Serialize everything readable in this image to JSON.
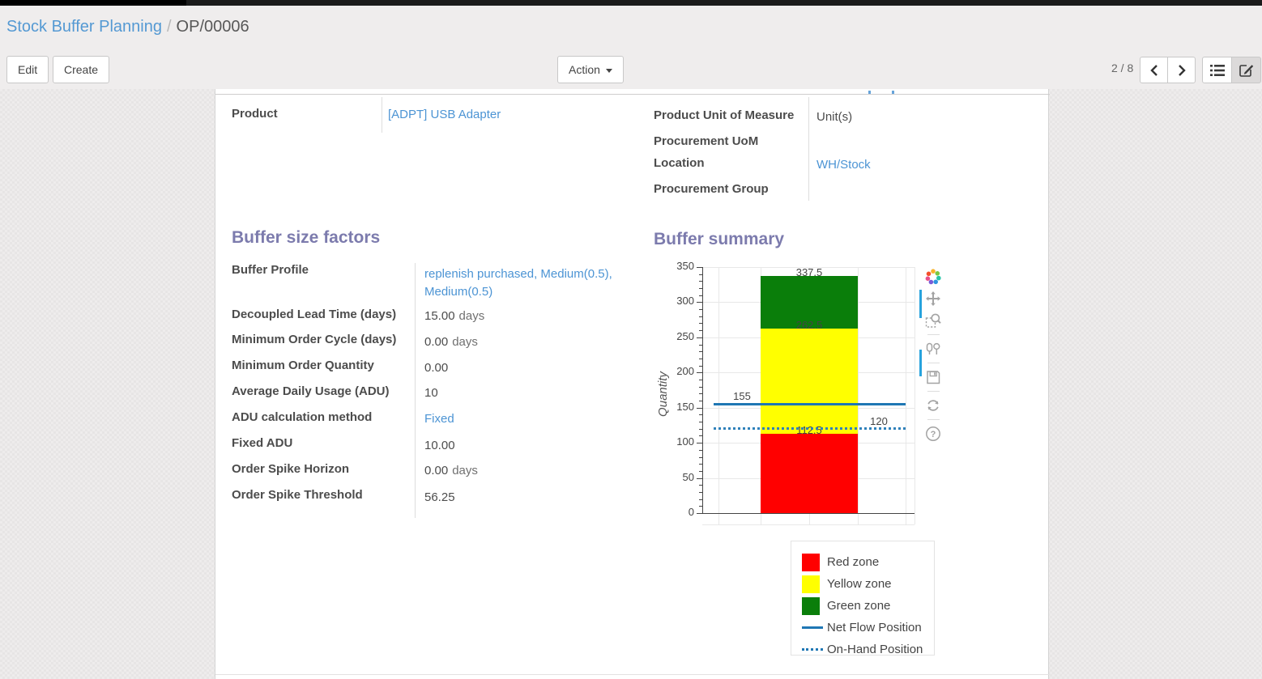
{
  "breadcrumb": {
    "parent": "Stock Buffer Planning",
    "separator": "/",
    "current": "OP/00006"
  },
  "control_panel": {
    "edit_label": "Edit",
    "create_label": "Create",
    "action_label": "Action",
    "pager": "2 / 8",
    "view_switcher_icons": [
      "list-view-icon",
      "form-view-icon"
    ],
    "active_view": "form"
  },
  "form": {
    "product": {
      "label": "Product",
      "value": "[ADPT] USB Adapter"
    },
    "right_fields": [
      {
        "label": "Product Unit of Measure",
        "value": "Unit(s)"
      },
      {
        "label": "Procurement UoM",
        "value": ""
      },
      {
        "label": "Location",
        "value": "WH/Stock"
      },
      {
        "label": "Procurement Group",
        "value": ""
      }
    ],
    "factors": {
      "title": "Buffer size factors",
      "fields": [
        {
          "label": "Buffer Profile",
          "value": "replenish purchased, Medium(0.5), Medium(0.5)"
        },
        {
          "label": "Decoupled Lead Time (days)",
          "value": "15.00",
          "suffix": "days"
        },
        {
          "label": "Minimum Order Cycle (days)",
          "value": "0.00",
          "suffix": "days"
        },
        {
          "label": "Minimum Order Quantity",
          "value": "0.00"
        },
        {
          "label": "Average Daily Usage (ADU)",
          "value": "10"
        },
        {
          "label": "ADU calculation method",
          "value": "Fixed"
        },
        {
          "label": "Fixed ADU",
          "value": "10.00"
        },
        {
          "label": "Order Spike Horizon",
          "value": "0.00",
          "suffix": "days"
        },
        {
          "label": "Order Spike Threshold",
          "value": "56.25"
        }
      ]
    },
    "summary_title": "Buffer summary"
  },
  "chart_data": {
    "type": "bar",
    "stacked": true,
    "title": "",
    "xlabel": "",
    "ylabel": "Quantity",
    "ylim": [
      0,
      350
    ],
    "ytick_step": 50,
    "minor_tick_step": 10,
    "grid": true,
    "zones": [
      {
        "name": "Red zone",
        "from": 0,
        "to": 112.5,
        "color": "#ff0000"
      },
      {
        "name": "Yellow zone",
        "from": 112.5,
        "to": 262.5,
        "color": "#ffff00"
      },
      {
        "name": "Green zone",
        "from": 262.5,
        "to": 337.5,
        "color": "#0a7e0a"
      }
    ],
    "segment_value_labels": [
      "112.5",
      "262.5",
      "337.5"
    ],
    "lines": [
      {
        "name": "Net Flow Position",
        "value": 155,
        "style": "solid",
        "color": "#1f77b4",
        "label": "155",
        "label_side": "left"
      },
      {
        "name": "On-Hand Position",
        "value": 120,
        "style": "dotted",
        "color": "#2f81ba",
        "label": "120",
        "label_side": "right"
      }
    ],
    "legend_position": "bottom-right",
    "legend": [
      {
        "label": "Red zone",
        "swatch": "red"
      },
      {
        "label": "Yellow zone",
        "swatch": "yellow"
      },
      {
        "label": "Green zone",
        "swatch": "green"
      },
      {
        "label": "Net Flow Position",
        "swatch": "line"
      },
      {
        "label": "On-Hand Position",
        "swatch": "dots"
      }
    ],
    "modebar_icons": [
      "plotly-logo",
      "pan",
      "box-zoom",
      "hover-compare",
      "download-plot",
      "reset-axes",
      "help"
    ]
  },
  "colors": {
    "link": "#4c94d4",
    "section_title": "#7c7bad",
    "net_flow": "#1f77b4",
    "red_zone": "#ff0000",
    "yellow_zone": "#ffff00",
    "green_zone": "#0a7e0a",
    "modebar_active": "#28a3dd"
  }
}
